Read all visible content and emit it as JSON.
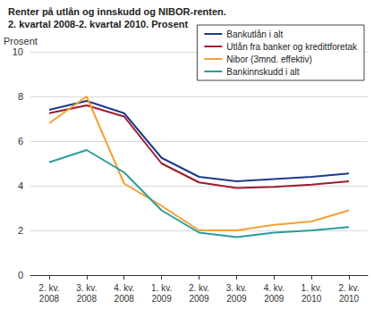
{
  "chart_data": {
    "type": "line",
    "title": "Renter på utlån og innskudd og NIBOR-renten.",
    "subtitle": "2. kvartal 2008-2. kvartal 2010. Prosent",
    "y_label": "Prosent",
    "categories": [
      "2. kv.\n2008",
      "3. kv.\n2008",
      "4. kv.\n2008",
      "1. kv.\n2009",
      "2. kv.\n2009",
      "3. kv.\n2009",
      "4. kv.\n2009",
      "1. kv.\n2010",
      "2. kv.\n2010"
    ],
    "series": [
      {
        "name": "Bankutlån i alt",
        "color": "#1f3a8a",
        "values": [
          7.4,
          7.8,
          7.25,
          5.25,
          4.4,
          4.2,
          4.3,
          4.4,
          4.55
        ]
      },
      {
        "name": "Utlån fra banker og kredittforetak",
        "color": "#9e1b2e",
        "values": [
          7.25,
          7.6,
          7.1,
          5.0,
          4.15,
          3.9,
          3.95,
          4.05,
          4.2
        ]
      },
      {
        "name": "Nibor (3mnd. effektiv)",
        "color": "#f5a030",
        "values": [
          6.8,
          8.0,
          4.1,
          3.1,
          2.0,
          2.0,
          2.25,
          2.4,
          2.9
        ]
      },
      {
        "name": "Bankinnskudd i alt",
        "color": "#2a9d9d",
        "values": [
          5.05,
          5.6,
          4.6,
          2.9,
          1.9,
          1.7,
          1.9,
          2.0,
          2.15
        ]
      }
    ],
    "ylim": [
      0,
      10
    ],
    "yticks": [
      0,
      2,
      4,
      6,
      8,
      10
    ],
    "grid": true,
    "legend": "upper right"
  }
}
